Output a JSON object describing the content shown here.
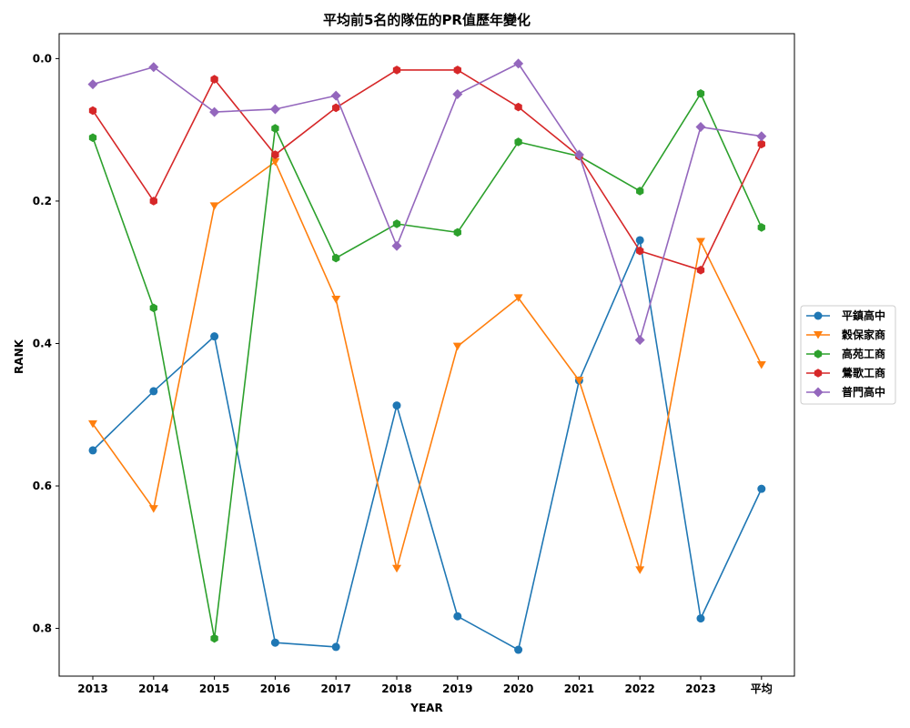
{
  "chart_data": {
    "type": "line",
    "title": "平均前5名的隊伍的PR值歷年變化",
    "xlabel": "YEAR",
    "ylabel": "RANK",
    "categories": [
      "2013",
      "2014",
      "2015",
      "2016",
      "2017",
      "2018",
      "2019",
      "2020",
      "2021",
      "2022",
      "2023",
      "平均"
    ],
    "ylim": [
      0.867,
      -0.035
    ],
    "y_inverted": true,
    "yticks": [
      "0.0",
      "0.2",
      "0.4",
      "0.6",
      "0.8"
    ],
    "ytick_values": [
      0.0,
      0.2,
      0.4,
      0.6,
      0.8
    ],
    "grid": false,
    "legend_position": "right-center",
    "series": [
      {
        "name": "平鎮高中",
        "color": "#1f77b4",
        "marker": "circle",
        "values": [
          0.55,
          0.467,
          0.39,
          0.82,
          0.826,
          0.487,
          0.783,
          0.83,
          0.452,
          0.255,
          0.786,
          0.604
        ]
      },
      {
        "name": "穀保家商",
        "color": "#ff7f0e",
        "marker": "triangle-down",
        "values": [
          0.513,
          0.632,
          0.207,
          0.145,
          0.338,
          0.716,
          0.404,
          0.336,
          0.452,
          0.718,
          0.257,
          0.43
        ]
      },
      {
        "name": "高苑工商",
        "color": "#2ca02c",
        "marker": "hexagon",
        "values": [
          0.111,
          0.35,
          0.814,
          0.098,
          0.28,
          0.232,
          0.244,
          0.117,
          0.137,
          0.186,
          0.049,
          0.237
        ]
      },
      {
        "name": "鶯歌工商",
        "color": "#d62728",
        "marker": "hexagon",
        "values": [
          0.073,
          0.2,
          0.029,
          0.135,
          0.069,
          0.016,
          0.016,
          0.068,
          0.137,
          0.27,
          0.297,
          0.12
        ]
      },
      {
        "name": "普門高中",
        "color": "#9467bd",
        "marker": "diamond",
        "values": [
          0.036,
          0.012,
          0.075,
          0.071,
          0.052,
          0.263,
          0.05,
          0.007,
          0.135,
          0.395,
          0.096,
          0.109
        ]
      }
    ]
  }
}
